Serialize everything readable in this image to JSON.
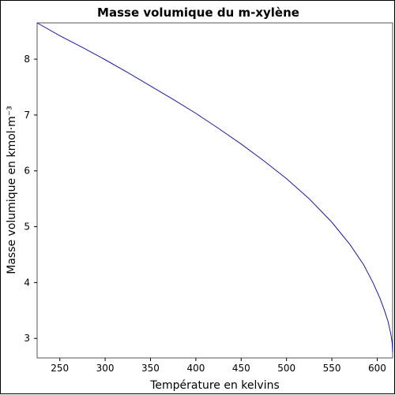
{
  "chart_data": {
    "type": "line",
    "title": "Masse volumique du m-xylène",
    "xlabel": "Température en kelvins",
    "ylabel": "Masse volumique en kmol·m⁻³",
    "xlim": [
      225,
      617
    ],
    "ylim": [
      2.65,
      8.65
    ],
    "xticks": [
      250,
      300,
      350,
      400,
      450,
      500,
      550,
      600
    ],
    "yticks": [
      3,
      4,
      5,
      6,
      7,
      8
    ],
    "grid": false,
    "series": [
      {
        "color": "#1a1a9a",
        "x": [
          225,
          250,
          275,
          300,
          325,
          350,
          375,
          400,
          425,
          450,
          475,
          500,
          525,
          550,
          570,
          585,
          595,
          603,
          608,
          612,
          615,
          616.5,
          617
        ],
        "y": [
          8.65,
          8.42,
          8.21,
          7.99,
          7.76,
          7.52,
          7.28,
          7.03,
          6.76,
          6.48,
          6.18,
          5.86,
          5.5,
          5.08,
          4.68,
          4.32,
          4.01,
          3.72,
          3.5,
          3.3,
          3.08,
          2.92,
          2.75
        ]
      }
    ]
  }
}
